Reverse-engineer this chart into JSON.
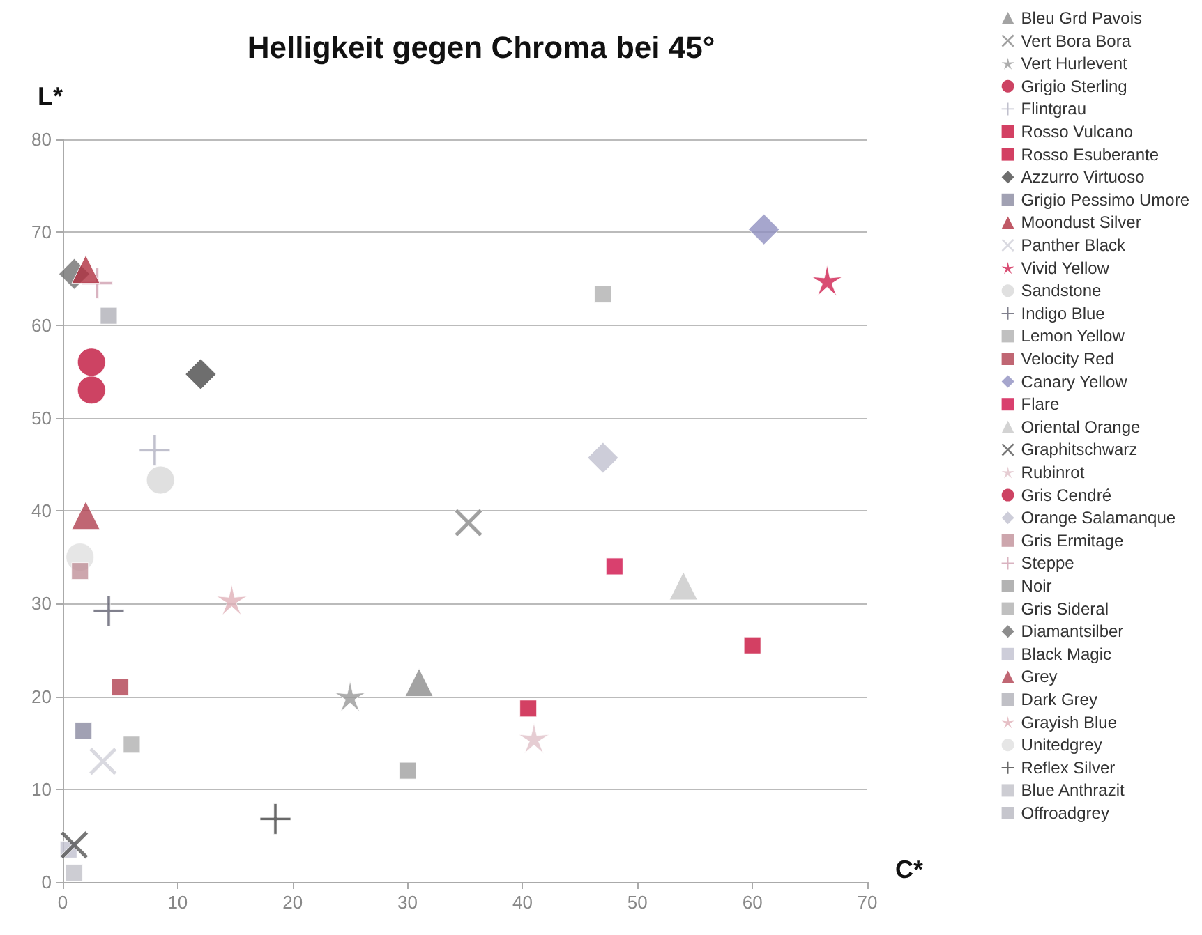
{
  "chart_data": {
    "type": "scatter",
    "title": "Helligkeit gegen Chroma bei 45°",
    "xlabel": "C*",
    "ylabel": "L*",
    "xlim": [
      0,
      70
    ],
    "xticks": [
      0,
      10,
      20,
      30,
      40,
      50,
      60,
      70
    ],
    "ylim": [
      0,
      80
    ],
    "yticks": [
      0,
      10,
      20,
      30,
      40,
      50,
      60,
      70,
      80
    ],
    "grid": "y",
    "legend": "right",
    "series": [
      {
        "name": "Bleu Grd Pavois",
        "marker": "triangle",
        "color": "#8c8c8c",
        "x": [
          31
        ],
        "values": [
          21.5
        ]
      },
      {
        "name": "Vert Bora Bora",
        "marker": "cross",
        "color": "#888888",
        "x": [
          35.3
        ],
        "values": [
          38.7
        ]
      },
      {
        "name": "Vert Hurlevent",
        "marker": "star",
        "color": "#999999",
        "x": [
          25
        ],
        "values": [
          20
        ]
      },
      {
        "name": "Grigio Sterling",
        "marker": "circle",
        "color": "#c0143c",
        "x": [
          2.5
        ],
        "values": [
          56
        ]
      },
      {
        "name": "Flintgrau",
        "marker": "plus",
        "color": "#b0b0c0",
        "x": [
          8
        ],
        "values": [
          46.5
        ]
      },
      {
        "name": "Rosso Vulcano",
        "marker": "square",
        "color": "#c8103c",
        "x": [
          60
        ],
        "values": [
          25.5
        ]
      },
      {
        "name": "Rosso Esuberante",
        "marker": "square",
        "color": "#c8103c",
        "x": [
          40.5
        ],
        "values": [
          18.7
        ]
      },
      {
        "name": "Azzurro Virtuoso",
        "marker": "diamond",
        "color": "#4a4a4a",
        "x": [
          12
        ],
        "values": [
          54.7
        ]
      },
      {
        "name": "Grigio Pessimo Umore",
        "marker": "square",
        "color": "#8a8aa0",
        "x": [
          1.8
        ],
        "values": [
          16.3
        ]
      },
      {
        "name": "Moondust Silver",
        "marker": "triangle",
        "color": "#b03040",
        "x": [
          2
        ],
        "values": [
          66
        ]
      },
      {
        "name": "Panther Black",
        "marker": "cross",
        "color": "#d0d0d8",
        "x": [
          3.5
        ],
        "values": [
          13
        ]
      },
      {
        "name": "Vivid Yellow",
        "marker": "star",
        "color": "#d02050",
        "x": [
          66.5
        ],
        "values": [
          64.8
        ]
      },
      {
        "name": "Sandstone",
        "marker": "circle",
        "color": "#d8d8d8",
        "x": [
          8.5
        ],
        "values": [
          43.3
        ]
      },
      {
        "name": "Indigo Blue",
        "marker": "plus",
        "color": "#606070",
        "x": [
          4
        ],
        "values": [
          29.2
        ]
      },
      {
        "name": "Lemon Yellow",
        "marker": "square",
        "color": "#b0b0b0",
        "x": [
          47
        ],
        "values": [
          63.3
        ]
      },
      {
        "name": "Velocity Red",
        "marker": "square",
        "color": "#b04050",
        "x": [
          5
        ],
        "values": [
          21
        ]
      },
      {
        "name": "Canary Yellow",
        "marker": "diamond",
        "color": "#9090c0",
        "x": [
          61
        ],
        "values": [
          70.3
        ]
      },
      {
        "name": "Flare",
        "marker": "square",
        "color": "#d0104a",
        "x": [
          48
        ],
        "values": [
          34
        ]
      },
      {
        "name": "Oriental Orange",
        "marker": "triangle",
        "color": "#c8c8c8",
        "x": [
          54
        ],
        "values": [
          31.9
        ]
      },
      {
        "name": "Graphitschwarz",
        "marker": "cross",
        "color": "#555555",
        "x": [
          1
        ],
        "values": [
          4
        ]
      },
      {
        "name": "Rubinrot",
        "marker": "star",
        "color": "#e0c0c8",
        "x": [
          41
        ],
        "values": [
          15.5
        ]
      },
      {
        "name": "Gris Cendré",
        "marker": "circle",
        "color": "#c0143c",
        "x": [
          2.5
        ],
        "values": [
          53
        ]
      },
      {
        "name": "Orange Salamanque",
        "marker": "diamond",
        "color": "#c0c0d0",
        "x": [
          47
        ],
        "values": [
          45.7
        ]
      },
      {
        "name": "Gris Ermitage",
        "marker": "square",
        "color": "#c09098",
        "x": [
          1.5
        ],
        "values": [
          33.5
        ]
      },
      {
        "name": "Steppe",
        "marker": "plus",
        "color": "#d0a0b0",
        "x": [
          3
        ],
        "values": [
          64.5
        ]
      },
      {
        "name": "Noir",
        "marker": "square",
        "color": "#a0a0a0",
        "x": [
          30
        ],
        "values": [
          12
        ]
      },
      {
        "name": "Gris Sideral",
        "marker": "square",
        "color": "#b0b0b0",
        "x": [
          6
        ],
        "values": [
          14.8
        ]
      },
      {
        "name": "Diamantsilber",
        "marker": "diamond",
        "color": "#707070",
        "x": [
          1
        ],
        "values": [
          65.5
        ]
      },
      {
        "name": "Black Magic",
        "marker": "square",
        "color": "#c0c0d0",
        "x": [
          0.5
        ],
        "values": [
          3.5
        ]
      },
      {
        "name": "Grey",
        "marker": "triangle",
        "color": "#b04050",
        "x": [
          2
        ],
        "values": [
          39.5
        ]
      },
      {
        "name": "Dark Grey",
        "marker": "square",
        "color": "#b0b0b8",
        "x": [
          4
        ],
        "values": [
          61
        ]
      },
      {
        "name": "Grayish Blue",
        "marker": "star",
        "color": "#e0b0b8",
        "x": [
          14.7
        ],
        "values": [
          30.4
        ]
      },
      {
        "name": "Unitedgrey",
        "marker": "circle",
        "color": "#e0e0e0",
        "x": [
          1.5
        ],
        "values": [
          35
        ]
      },
      {
        "name": "Reflex Silver",
        "marker": "plus",
        "color": "#444444",
        "x": [
          18.5
        ],
        "values": [
          6.8
        ]
      },
      {
        "name": "Blue Anthrazit",
        "marker": "square",
        "color": "#c0c0c8",
        "x": [
          1
        ],
        "values": [
          1
        ]
      },
      {
        "name": "Offroadgrey",
        "marker": "square",
        "color": "#b8b8c0"
      }
    ]
  }
}
